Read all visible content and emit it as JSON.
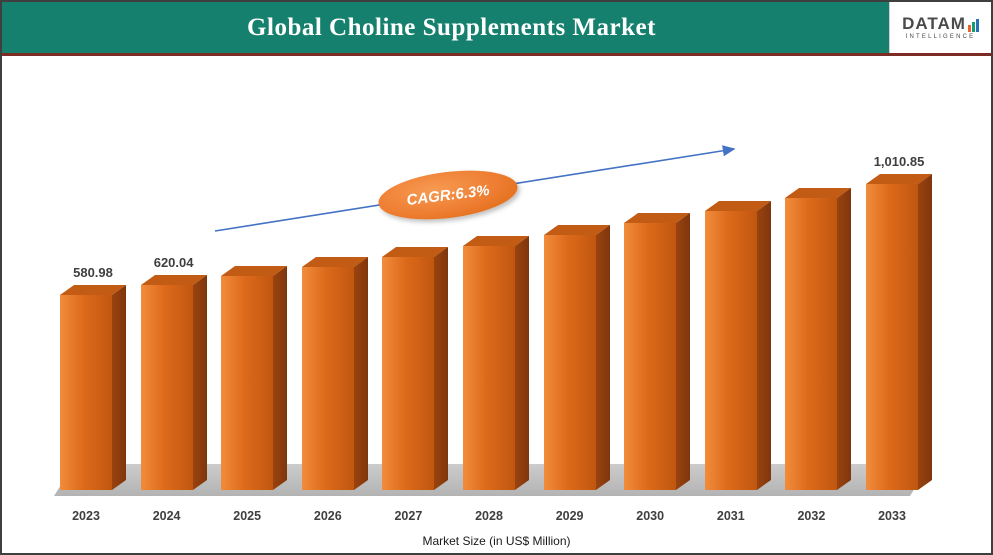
{
  "header": {
    "title": "Global Choline Supplements Market"
  },
  "logo": {
    "name": "DATAM",
    "subtitle": "INTELLIGENCE"
  },
  "chart_data": {
    "type": "bar",
    "title": "Global Choline Supplements Market",
    "categories": [
      "2023",
      "2024",
      "2025",
      "2026",
      "2027",
      "2028",
      "2029",
      "2030",
      "2031",
      "2032",
      "2033"
    ],
    "values": [
      580.98,
      620.04,
      654.7,
      691.2,
      729.8,
      770.5,
      813.5,
      858.9,
      906.8,
      957.4,
      1010.85
    ],
    "data_labels": {
      "2023": "580.98",
      "2024": "620.04",
      "2033": "1,010.85"
    },
    "cagr": "CAGR:6.3%",
    "xlabel": "Market Size (in US$ Million)",
    "ylabel": "",
    "value_axis_visible": false,
    "gridlines": false,
    "legend": "none",
    "bar_style": "3d-orange"
  },
  "colors": {
    "header_bg": "#15806d",
    "header_rule": "#7c2b25",
    "bar_light": "#f18c3c",
    "bar_main": "#dd6a1b",
    "bar_dark": "#c05710",
    "bar_top": "#c25c14",
    "bar_side": "#9a430f",
    "bar_side_dark": "#7f360c",
    "arrow_blue": "#4472c4",
    "cagr_orange": "#ed7d31",
    "floor_gray": "#b3b3b3",
    "floor_light": "#cccccc",
    "logo_orange": "#e8622c",
    "logo_teal": "#129b77",
    "logo_blue": "#2d6fb7",
    "text_dark": "#3f3f3f"
  }
}
